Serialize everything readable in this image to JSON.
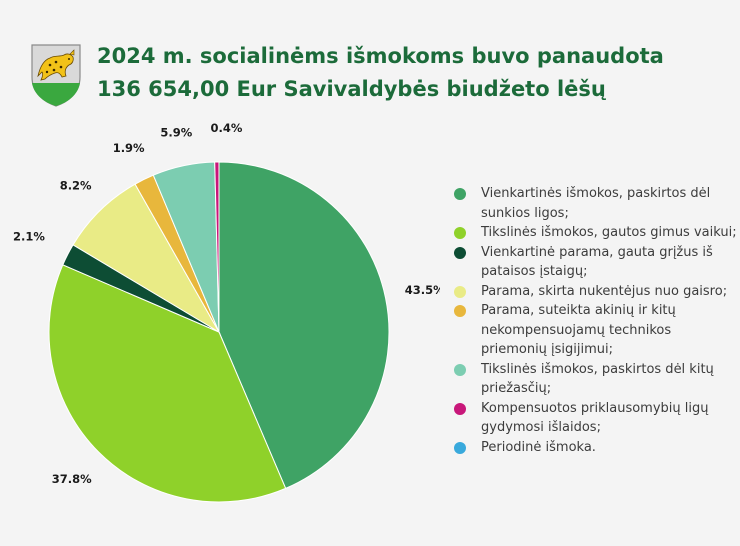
{
  "header": {
    "title_line1": "2024 m. socialinėms išmokoms buvo panaudota",
    "title_line2": "136 654,00 Eur Savivaldybės biudžeto lėšų"
  },
  "colors": {
    "title": "#1c6b3a",
    "background": "#f4f4f4"
  },
  "crest_icon": "municipality-crest-leopard-icon",
  "chart_data": {
    "type": "pie",
    "start_angle_deg": 0,
    "direction": "clockwise",
    "slices": [
      {
        "label_lines": [
          "Vienkartinės išmokos, paskirtos dėl",
          "sunkios ligos;"
        ],
        "value": 43.5,
        "value_label": "43.5%",
        "color": "#3fa365"
      },
      {
        "label_lines": [
          "Tikslinės išmokos, gautos gimus vaikui;"
        ],
        "value": 37.8,
        "value_label": "37.8%",
        "color": "#8fd12a"
      },
      {
        "label_lines": [
          "Vienkartinė parama, gauta grįžus iš",
          "pataisos įstaigų;"
        ],
        "value": 2.1,
        "value_label": "2.1%",
        "color": "#0d4d34"
      },
      {
        "label_lines": [
          "Parama, skirta nukentėjus nuo gaisro;"
        ],
        "value": 8.2,
        "value_label": "8.2%",
        "color": "#e9eb86"
      },
      {
        "label_lines": [
          "Parama, suteikta akinių ir kitų",
          "nekompensuojamų technikos",
          "priemonių įsigijimui;"
        ],
        "value": 1.9,
        "value_label": "1.9%",
        "color": "#e8b73c"
      },
      {
        "label_lines": [
          "Tikslinės išmokos, paskirtos dėl kitų",
          "priežasčių;"
        ],
        "value": 5.9,
        "value_label": "5.9%",
        "color": "#7ccdb1"
      },
      {
        "label_lines": [
          "Kompensuotos priklausomybių ligų",
          "gydymosi išlaidos;"
        ],
        "value": 0.4,
        "value_label": "0.4%",
        "color": "#c8177a"
      },
      {
        "label_lines": [
          "Periodinė išmoka."
        ],
        "value": 0,
        "value_label": "",
        "color": "#39a9dc"
      }
    ]
  }
}
